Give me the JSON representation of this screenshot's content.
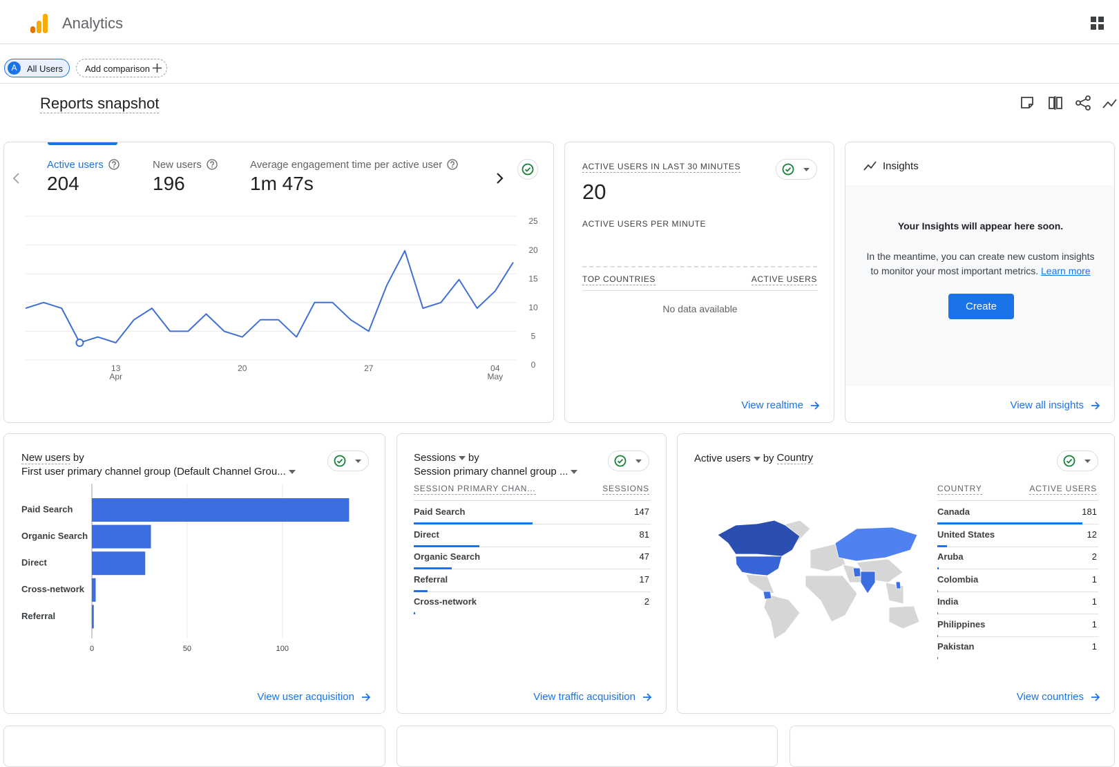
{
  "header": {
    "app_name": "Analytics"
  },
  "filters": {
    "avatar": "A",
    "segment": "All Users",
    "add": "Add comparison"
  },
  "page_title": "Reports snapshot",
  "overview": {
    "metrics": [
      {
        "label": "Active users",
        "value": 204
      },
      {
        "label": "New users",
        "value": 196
      },
      {
        "label": "Average engagement time per active user",
        "value": "1m 47s"
      }
    ],
    "chart_data": {
      "type": "line",
      "categories": [
        null,
        null,
        null,
        null,
        null,
        "13\nApr",
        null,
        null,
        null,
        null,
        null,
        null,
        "20",
        null,
        null,
        null,
        null,
        null,
        null,
        "27",
        null,
        null,
        null,
        null,
        null,
        null,
        "04\nMay",
        null
      ],
      "values": [
        9,
        10,
        9,
        3,
        4,
        3,
        7,
        9,
        5,
        5,
        8,
        5,
        4,
        7,
        7,
        4,
        10,
        10,
        7,
        5,
        13,
        19,
        9,
        10,
        14,
        9,
        12,
        17
      ],
      "color": "#3d6fd6",
      "ylim": [
        0,
        25
      ],
      "yticks": [
        0,
        5,
        10,
        15,
        20,
        25
      ],
      "grid": true
    }
  },
  "realtime": {
    "title": "ACTIVE USERS IN LAST 30 MINUTES",
    "value": 20,
    "subtitle": "ACTIVE USERS PER MINUTE",
    "columns": [
      "TOP COUNTRIES",
      "ACTIVE USERS"
    ],
    "empty": "No data available",
    "link": "View realtime"
  },
  "insights": {
    "title": "Insights",
    "heading": "Your Insights will appear here soon.",
    "lines": [
      "In the meantime, you can create new custom insights",
      "to monitor your most important metrics."
    ],
    "learn_more": "Learn more",
    "button": "Create",
    "link": "View all insights"
  },
  "acquisition": {
    "metric": "New users",
    "by": "by",
    "dimension": "First user primary channel group (Default Channel Grou...",
    "chart_data": {
      "type": "bar",
      "orientation": "horizontal",
      "categories": [
        "Paid Search",
        "Organic Search",
        "Direct",
        "Cross-network",
        "Referral"
      ],
      "values": [
        135,
        31,
        28,
        2,
        1
      ],
      "color": "#3b6ee0",
      "xlim": [
        0,
        145
      ],
      "xticks": [
        0,
        50,
        100
      ],
      "grid": true
    },
    "link": "View user acquisition"
  },
  "traffic": {
    "metric": "Sessions",
    "by": "by",
    "dimension": "Session primary channel group ...",
    "table": {
      "columns": [
        "SESSION PRIMARY CHAN...",
        "SESSIONS"
      ],
      "rows": [
        [
          "Paid Search",
          147
        ],
        [
          "Direct",
          81
        ],
        [
          "Organic Search",
          47
        ],
        [
          "Referral",
          17
        ],
        [
          "Cross-network",
          2
        ]
      ]
    },
    "link": "View traffic acquisition"
  },
  "countries": {
    "metric": "Active users",
    "by": "by",
    "dimension": "Country",
    "table": {
      "columns": [
        "COUNTRY",
        "ACTIVE USERS"
      ],
      "rows": [
        [
          "Canada",
          181
        ],
        [
          "United States",
          12
        ],
        [
          "Aruba",
          2
        ],
        [
          "Colombia",
          1
        ],
        [
          "India",
          1
        ],
        [
          "Philippines",
          1
        ],
        [
          "Pakistan",
          1
        ]
      ]
    },
    "link": "View countries"
  }
}
